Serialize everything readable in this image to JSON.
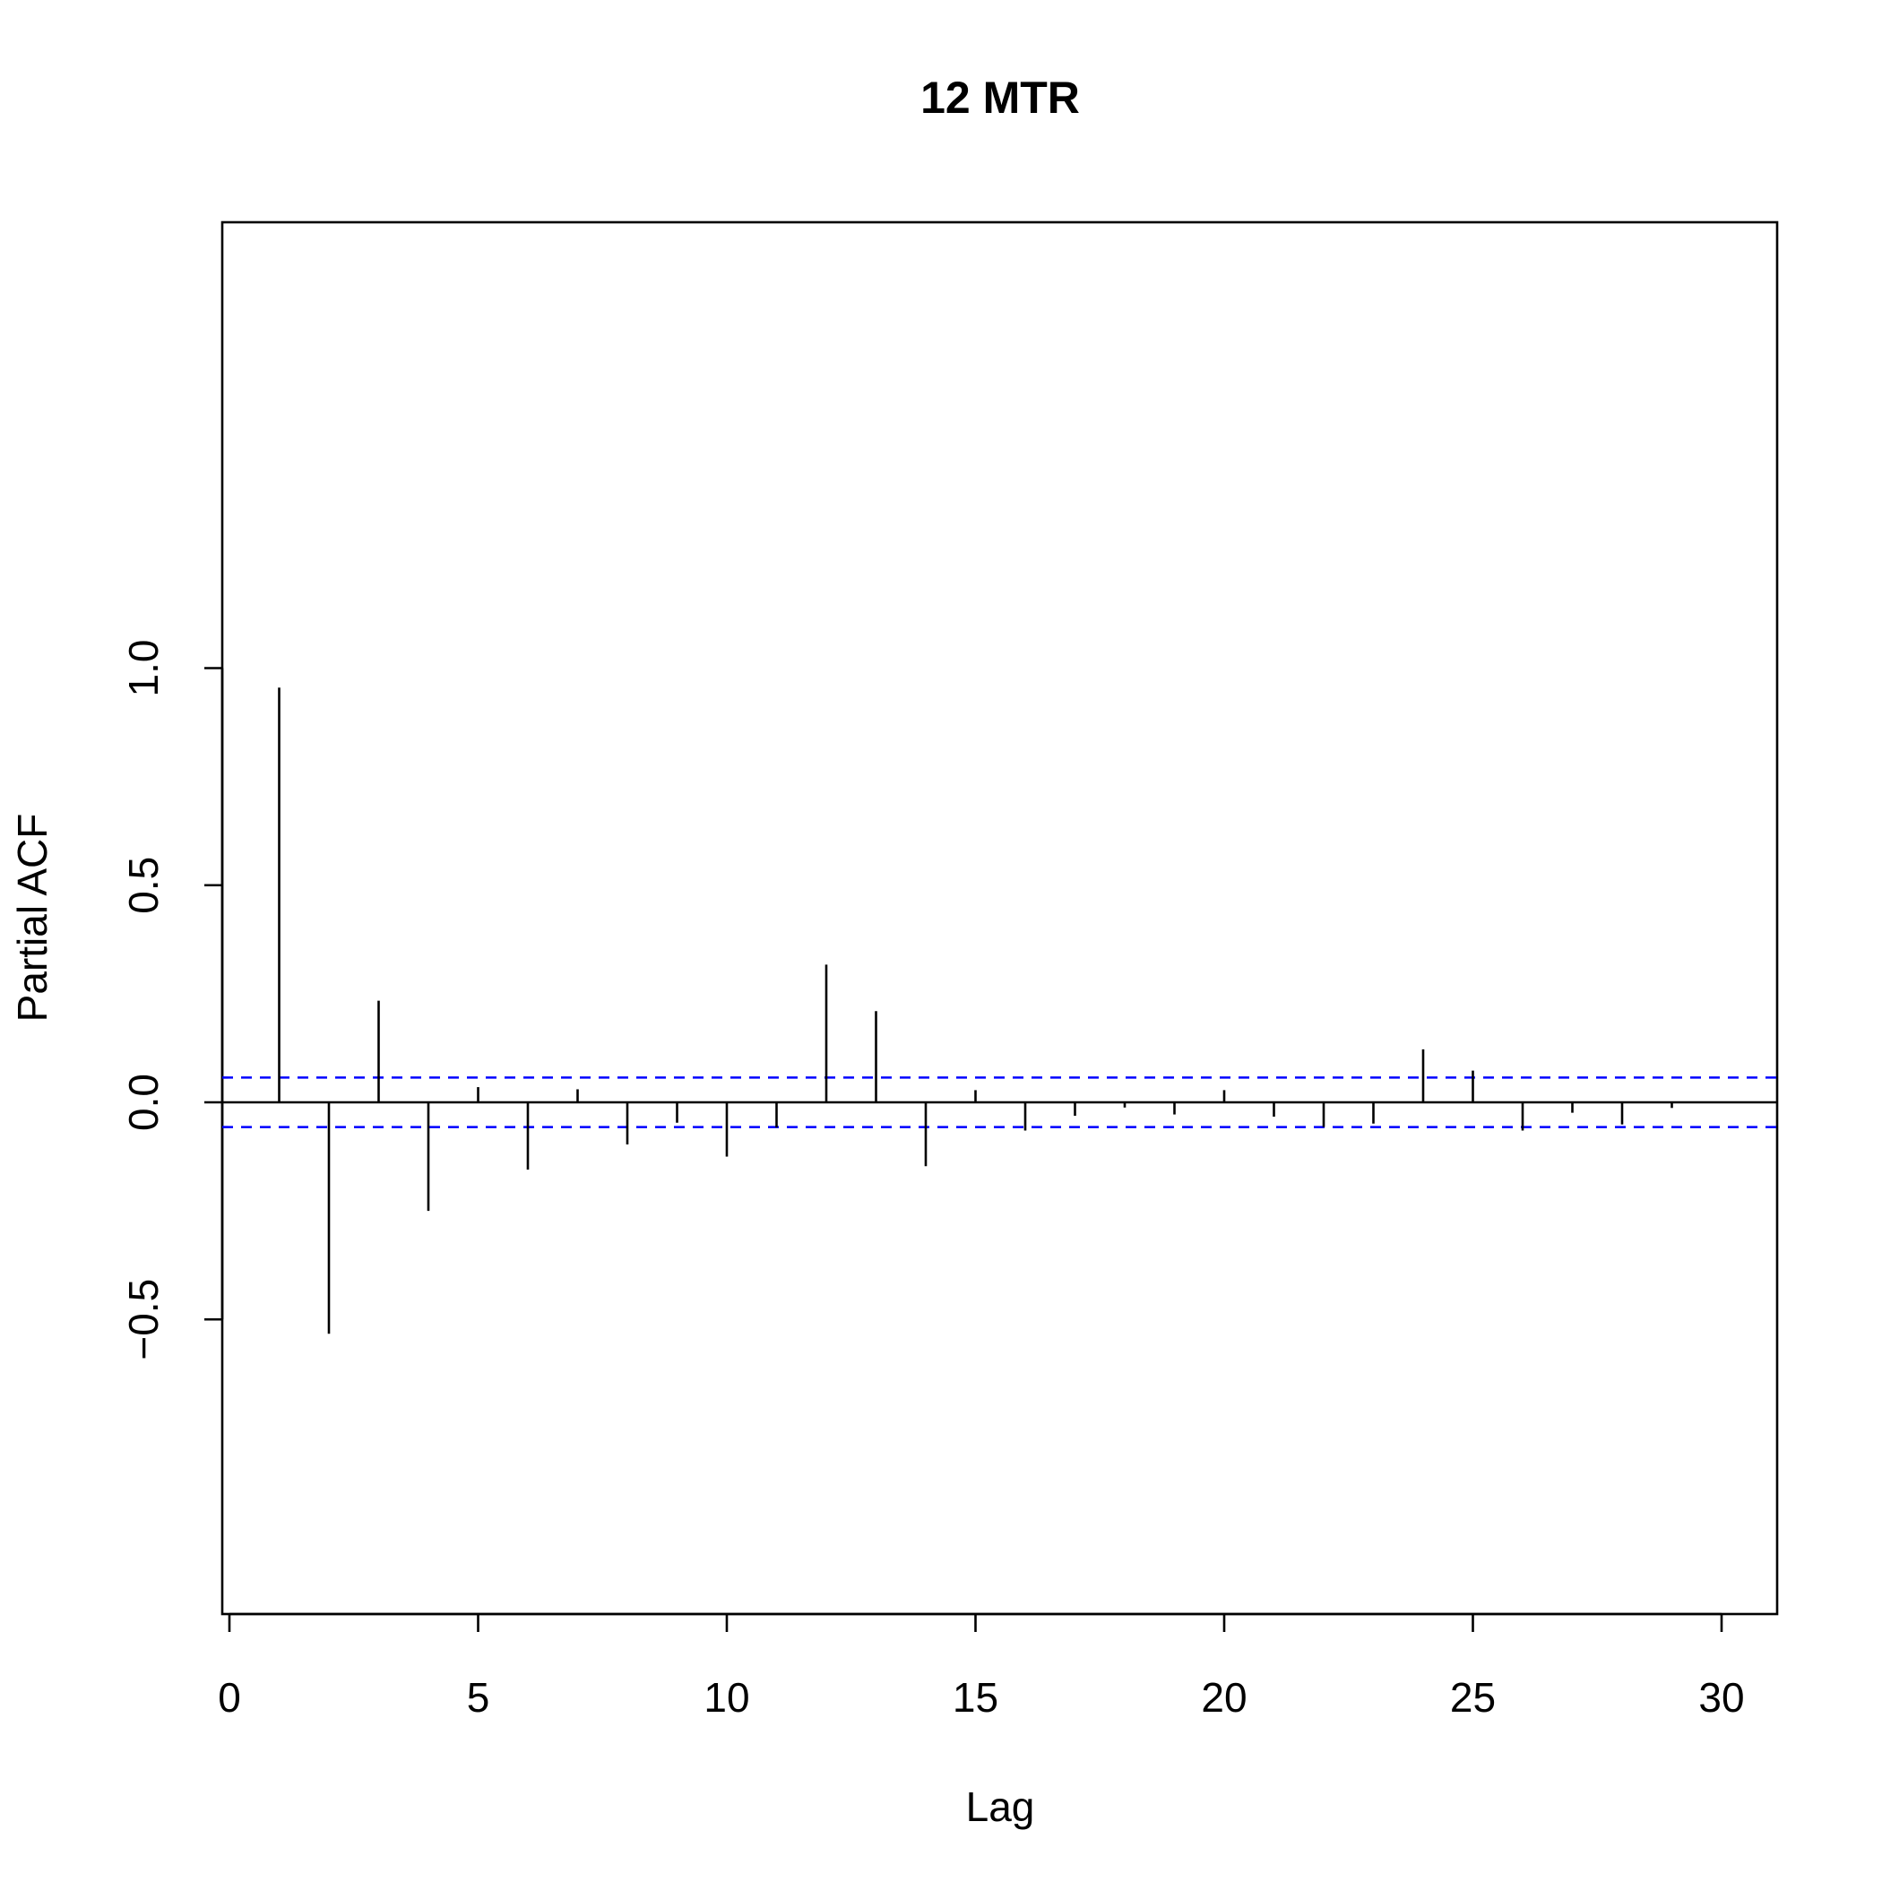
{
  "chart_data": {
    "type": "bar",
    "title": "12 MTR",
    "xlabel": "Lag",
    "ylabel": "Partial ACF",
    "xlim": [
      0,
      31
    ],
    "ylim": [
      -0.6,
      1.0
    ],
    "x_ticks": [
      0,
      5,
      10,
      15,
      20,
      25,
      30
    ],
    "y_ticks": [
      -0.5,
      0.0,
      0.5,
      1.0
    ],
    "x_tick_labels": [
      "0",
      "5",
      "10",
      "15",
      "20",
      "25",
      "30"
    ],
    "y_tick_labels": [
      "−0.5",
      "0.0",
      "0.5",
      "1.0"
    ],
    "lags": [
      1,
      2,
      3,
      4,
      5,
      6,
      7,
      8,
      9,
      10,
      11,
      12,
      13,
      14,
      15,
      16,
      17,
      18,
      19,
      20,
      21,
      22,
      23,
      24,
      25,
      26,
      27,
      28,
      29,
      30
    ],
    "values": [
      0.955,
      -0.533,
      0.234,
      -0.25,
      0.035,
      -0.155,
      0.03,
      -0.097,
      -0.047,
      -0.125,
      -0.058,
      0.317,
      0.21,
      -0.147,
      0.028,
      -0.065,
      -0.031,
      -0.012,
      -0.028,
      0.028,
      -0.033,
      -0.057,
      -0.049,
      0.122,
      0.073,
      -0.065,
      -0.024,
      -0.051,
      -0.013,
      0.002
    ],
    "confidence_bound": 0.057,
    "colors": {
      "spike": "#000000",
      "confidence_line": "#0000ff"
    },
    "grid": false
  }
}
